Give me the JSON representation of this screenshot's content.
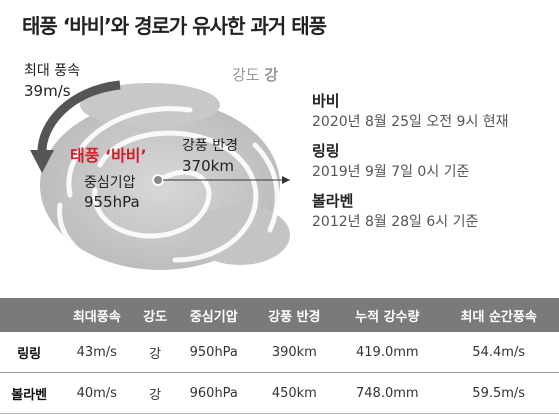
{
  "title": "태풍 ‘바비’와 경로가 유사한 과거 태풍",
  "graphic": {
    "max_wind_label": "최대 풍속",
    "max_wind_value": "39m/s",
    "intensity_label": "강도",
    "intensity_value": "강",
    "name": "태풍 ‘바비’",
    "pressure_label": "중심기압",
    "pressure_value": "955hPa",
    "radius_label": "강풍 반경",
    "radius_value": "370km"
  },
  "info": [
    {
      "name": "바비",
      "time": "2020년 8월 25일 오전 9시 현재"
    },
    {
      "name": "링링",
      "time": "2019년 9월 7일 0시 기준"
    },
    {
      "name": "볼라벤",
      "time": "2012년 8월 28일 6시 기준"
    }
  ],
  "table": {
    "columns": [
      "최대풍속",
      "강도",
      "중심기압",
      "강풍 반경",
      "누적 강수량",
      "최대 순간풍속"
    ],
    "rows": [
      [
        "링링",
        "43m/s",
        "강",
        "950hPa",
        "390km",
        "419.0mm",
        "54.4m/s"
      ],
      [
        "볼라벤",
        "40m/s",
        "강",
        "960hPa",
        "450km",
        "748.0mm",
        "59.5m/s"
      ]
    ]
  }
}
